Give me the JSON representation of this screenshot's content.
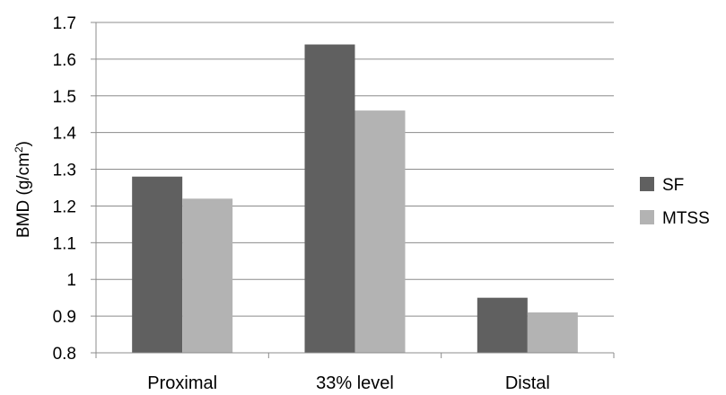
{
  "chart_data": {
    "type": "bar",
    "title": "",
    "xlabel": "",
    "ylabel": "BMD (g/cm2)",
    "ylabel_parts": {
      "main": "BMD (g/cm",
      "sup": "2",
      "end": ")"
    },
    "categories": [
      "Proximal",
      "33% level",
      "Distal"
    ],
    "series": [
      {
        "name": "SF",
        "color": "#606060",
        "values": [
          1.28,
          1.64,
          0.95
        ]
      },
      {
        "name": "MTSS",
        "color": "#b3b3b3",
        "values": [
          1.22,
          1.46,
          0.91
        ]
      }
    ],
    "ylim": [
      0.8,
      1.7
    ],
    "yticks": [
      0.8,
      0.9,
      1.0,
      1.1,
      1.2,
      1.3,
      1.4,
      1.5,
      1.6,
      1.7
    ],
    "ytick_labels": [
      "0.8",
      "0.9",
      "1",
      "1.1",
      "1.2",
      "1.3",
      "1.4",
      "1.5",
      "1.6",
      "1.7"
    ],
    "grid": true,
    "legend_position": "right"
  }
}
